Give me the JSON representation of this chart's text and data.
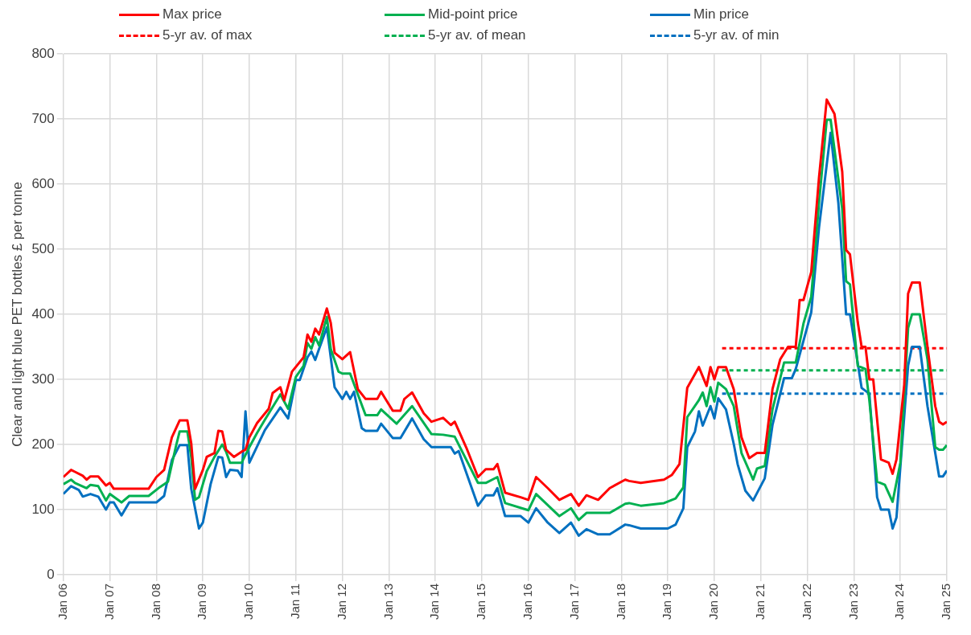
{
  "chart_data": {
    "type": "line",
    "ylabel": "Clear and light blue PET bottles £ per tonne",
    "legend": "top",
    "grid": true,
    "marker": "none",
    "line_style": "solid",
    "xlim": [
      "2006-01",
      "2025-01"
    ],
    "xticks": [
      {
        "value": "2006-01",
        "label": "Jan 06"
      },
      {
        "value": "2007-01",
        "label": "Jan 07"
      },
      {
        "value": "2008-01",
        "label": "Jan 08"
      },
      {
        "value": "2009-01",
        "label": "Jan 09"
      },
      {
        "value": "2010-01",
        "label": "Jan 10"
      },
      {
        "value": "2011-01",
        "label": "Jan 11"
      },
      {
        "value": "2012-01",
        "label": "Jan 12"
      },
      {
        "value": "2013-01",
        "label": "Jan 13"
      },
      {
        "value": "2014-01",
        "label": "Jan 14"
      },
      {
        "value": "2015-01",
        "label": "Jan 15"
      },
      {
        "value": "2016-01",
        "label": "Jan 16"
      },
      {
        "value": "2017-01",
        "label": "Jan 17"
      },
      {
        "value": "2018-01",
        "label": "Jan 18"
      },
      {
        "value": "2019-01",
        "label": "Jan 19"
      },
      {
        "value": "2020-01",
        "label": "Jan 20"
      },
      {
        "value": "2021-01",
        "label": "Jan 21"
      },
      {
        "value": "2022-01",
        "label": "Jan 22"
      },
      {
        "value": "2023-01",
        "label": "Jan 23"
      },
      {
        "value": "2024-01",
        "label": "Jan 24"
      },
      {
        "value": "2025-01",
        "label": "Jan 25"
      }
    ],
    "ylim": [
      0,
      800
    ],
    "yticks": [
      0,
      100,
      200,
      300,
      400,
      500,
      600,
      700,
      800
    ],
    "series": [
      {
        "name": "Max price",
        "color": "#ff0000",
        "x": [
          "2006-01",
          "2006-03",
          "2006-04",
          "2006-06",
          "2006-07",
          "2006-08",
          "2006-10",
          "2006-12",
          "2007-01",
          "2007-02",
          "2007-11",
          "2008-01",
          "2008-03",
          "2008-05",
          "2008-07",
          "2008-09",
          "2008-10",
          "2008-11",
          "2009-01",
          "2009-02",
          "2009-04",
          "2009-05",
          "2009-06",
          "2009-07",
          "2009-09",
          "2009-11",
          "2009-12",
          "2010-01",
          "2010-03",
          "2010-06",
          "2010-07",
          "2010-09",
          "2010-10",
          "2010-12",
          "2011-03",
          "2011-04",
          "2011-05",
          "2011-06",
          "2011-07",
          "2011-09",
          "2011-10",
          "2011-11",
          "2012-01",
          "2012-03",
          "2012-05",
          "2012-07",
          "2012-10",
          "2012-11",
          "2013-02",
          "2013-04",
          "2013-05",
          "2013-07",
          "2013-10",
          "2013-12",
          "2014-03",
          "2014-05",
          "2014-06",
          "2014-09",
          "2014-12",
          "2015-02",
          "2015-04",
          "2015-05",
          "2015-07",
          "2015-11",
          "2016-01",
          "2016-03",
          "2016-06",
          "2016-09",
          "2016-12",
          "2017-02",
          "2017-04",
          "2017-07",
          "2017-10",
          "2018-02",
          "2018-03",
          "2018-06",
          "2018-12",
          "2019-02",
          "2019-04",
          "2019-06",
          "2019-09",
          "2019-11",
          "2019-12",
          "2020-01",
          "2020-02",
          "2020-04",
          "2020-06",
          "2020-08",
          "2020-10",
          "2020-12",
          "2021-02",
          "2021-04",
          "2021-06",
          "2021-08",
          "2021-10",
          "2021-11",
          "2021-12",
          "2022-02",
          "2022-04",
          "2022-06",
          "2022-08",
          "2022-10",
          "2022-11",
          "2022-12",
          "2023-02",
          "2023-03",
          "2023-04",
          "2023-05",
          "2023-06",
          "2023-08",
          "2023-10",
          "2023-11",
          "2023-12",
          "2024-02",
          "2024-03",
          "2024-04",
          "2024-06",
          "2024-08",
          "2024-10",
          "2024-11",
          "2024-12",
          "2025-01"
        ],
        "values": [
          150,
          161,
          158,
          152,
          146,
          151,
          151,
          137,
          141,
          132,
          132,
          150,
          161,
          211,
          237,
          237,
          202,
          132,
          161,
          181,
          187,
          221,
          220,
          192,
          181,
          189,
          192,
          211,
          233,
          255,
          279,
          288,
          268,
          312,
          334,
          369,
          358,
          378,
          369,
          409,
          387,
          341,
          331,
          342,
          285,
          270,
          270,
          281,
          252,
          252,
          270,
          280,
          248,
          235,
          241,
          230,
          235,
          195,
          150,
          162,
          162,
          170,
          126,
          119,
          115,
          150,
          133,
          115,
          124,
          106,
          122,
          115,
          133,
          146,
          144,
          141,
          146,
          153,
          170,
          287,
          319,
          290,
          319,
          300,
          319,
          319,
          285,
          211,
          179,
          187,
          187,
          285,
          331,
          350,
          350,
          422,
          422,
          465,
          610,
          730,
          708,
          619,
          499,
          492,
          388,
          350,
          350,
          300,
          300,
          177,
          172,
          155,
          177,
          292,
          432,
          449,
          449,
          350,
          259,
          235,
          231,
          235
        ]
      },
      {
        "name": "Mid-point price",
        "color": "#00b050",
        "x": [
          "2006-01",
          "2006-03",
          "2006-04",
          "2006-07",
          "2006-08",
          "2006-10",
          "2006-12",
          "2007-01",
          "2007-04",
          "2007-06",
          "2007-11",
          "2008-02",
          "2008-04",
          "2008-06",
          "2008-07",
          "2008-09",
          "2008-10",
          "2008-11",
          "2008-12",
          "2009-02",
          "2009-04",
          "2009-06",
          "2009-07",
          "2009-08",
          "2009-11",
          "2010-01",
          "2010-03",
          "2010-05",
          "2010-09",
          "2010-11",
          "2011-01",
          "2011-03",
          "2011-04",
          "2011-05",
          "2011-06",
          "2011-07",
          "2011-09",
          "2011-10",
          "2011-12",
          "2012-01",
          "2012-03",
          "2012-07",
          "2012-10",
          "2012-11",
          "2013-03",
          "2013-07",
          "2013-12",
          "2014-03",
          "2014-06",
          "2014-12",
          "2015-02",
          "2015-05",
          "2015-07",
          "2016-01",
          "2016-03",
          "2016-09",
          "2016-12",
          "2017-02",
          "2017-04",
          "2017-10",
          "2018-02",
          "2018-03",
          "2018-06",
          "2018-12",
          "2019-03",
          "2019-05",
          "2019-06",
          "2019-09",
          "2019-10",
          "2019-11",
          "2019-12",
          "2020-01",
          "2020-02",
          "2020-04",
          "2020-06",
          "2020-08",
          "2020-11",
          "2020-12",
          "2021-02",
          "2021-04",
          "2021-07",
          "2021-10",
          "2021-12",
          "2022-02",
          "2022-04",
          "2022-06",
          "2022-07",
          "2022-10",
          "2022-11",
          "2022-12",
          "2023-02",
          "2023-04",
          "2023-05",
          "2023-07",
          "2023-09",
          "2023-11",
          "2024-01",
          "2024-03",
          "2024-04",
          "2024-06",
          "2024-08",
          "2024-10",
          "2024-11",
          "2024-12",
          "2025-01"
        ],
        "values": [
          139,
          146,
          141,
          133,
          138,
          136,
          114,
          124,
          111,
          121,
          121,
          135,
          143,
          196,
          220,
          220,
          181,
          115,
          119,
          159,
          181,
          200,
          189,
          172,
          172,
          196,
          218,
          238,
          277,
          255,
          304,
          321,
          356,
          347,
          365,
          352,
          396,
          347,
          312,
          309,
          309,
          245,
          245,
          254,
          232,
          259,
          216,
          215,
          212,
          141,
          141,
          150,
          110,
          99,
          124,
          90,
          102,
          84,
          95,
          95,
          109,
          110,
          106,
          110,
          117,
          134,
          242,
          268,
          280,
          259,
          288,
          266,
          295,
          285,
          259,
          187,
          146,
          163,
          167,
          254,
          326,
          326,
          386,
          427,
          571,
          699,
          699,
          562,
          451,
          446,
          321,
          316,
          268,
          143,
          138,
          112,
          172,
          379,
          400,
          400,
          331,
          196,
          192,
          192,
          199
        ]
      },
      {
        "name": "Min price",
        "color": "#0070c0",
        "x": [
          "2006-01",
          "2006-03",
          "2006-05",
          "2006-06",
          "2006-08",
          "2006-10",
          "2006-12",
          "2007-01",
          "2007-02",
          "2007-04",
          "2007-06",
          "2008-01",
          "2008-03",
          "2008-05",
          "2008-07",
          "2008-09",
          "2008-10",
          "2008-12",
          "2009-01",
          "2009-03",
          "2009-05",
          "2009-06",
          "2009-07",
          "2009-08",
          "2009-10",
          "2009-11",
          "2009-12",
          "2010-01",
          "2010-05",
          "2010-09",
          "2010-11",
          "2011-01",
          "2011-02",
          "2011-04",
          "2011-05",
          "2011-06",
          "2011-07",
          "2011-09",
          "2011-11",
          "2012-01",
          "2012-02",
          "2012-03",
          "2012-04",
          "2012-06",
          "2012-07",
          "2012-10",
          "2012-11",
          "2013-02",
          "2013-04",
          "2013-07",
          "2013-10",
          "2013-12",
          "2014-05",
          "2014-06",
          "2014-07",
          "2014-12",
          "2015-02",
          "2015-04",
          "2015-05",
          "2015-07",
          "2015-11",
          "2016-01",
          "2016-03",
          "2016-06",
          "2016-09",
          "2016-12",
          "2017-02",
          "2017-04",
          "2017-07",
          "2017-10",
          "2018-02",
          "2018-03",
          "2018-06",
          "2019-01",
          "2019-03",
          "2019-05",
          "2019-06",
          "2019-08",
          "2019-09",
          "2019-10",
          "2019-12",
          "2020-01",
          "2020-02",
          "2020-04",
          "2020-06",
          "2020-07",
          "2020-09",
          "2020-11",
          "2021-02",
          "2021-04",
          "2021-07",
          "2021-09",
          "2021-10",
          "2022-02",
          "2022-04",
          "2022-07",
          "2022-09",
          "2022-11",
          "2022-12",
          "2023-03",
          "2023-05",
          "2023-07",
          "2023-08",
          "2023-10",
          "2023-11",
          "2023-12",
          "2024-03",
          "2024-04",
          "2024-06",
          "2024-08",
          "2024-11",
          "2024-12",
          "2025-01"
        ],
        "values": [
          124,
          136,
          130,
          120,
          124,
          120,
          100,
          111,
          111,
          91,
          111,
          111,
          121,
          176,
          199,
          199,
          132,
          71,
          80,
          139,
          181,
          180,
          150,
          161,
          160,
          150,
          251,
          172,
          222,
          257,
          240,
          299,
          299,
          334,
          343,
          330,
          347,
          380,
          288,
          270,
          281,
          270,
          281,
          225,
          221,
          221,
          232,
          210,
          210,
          240,
          208,
          196,
          196,
          186,
          190,
          106,
          122,
          122,
          133,
          90,
          90,
          80,
          102,
          80,
          64,
          80,
          60,
          70,
          62,
          62,
          77,
          76,
          71,
          71,
          77,
          102,
          196,
          220,
          251,
          229,
          259,
          240,
          271,
          254,
          201,
          170,
          129,
          114,
          148,
          230,
          302,
          302,
          316,
          403,
          533,
          679,
          571,
          400,
          400,
          287,
          278,
          119,
          100,
          100,
          71,
          88,
          321,
          350,
          350,
          259,
          151,
          151,
          160
        ]
      },
      {
        "name": "5-yr av. of max",
        "color": "#ff0000",
        "line_style": "dashed",
        "x": [
          "2020-03",
          "2025-01"
        ],
        "values": [
          348,
          348
        ]
      },
      {
        "name": "5-yr av. of mean",
        "color": "#00b050",
        "line_style": "dashed",
        "x": [
          "2020-03",
          "2025-01"
        ],
        "values": [
          314,
          314
        ]
      },
      {
        "name": "5-yr av. of min",
        "color": "#0070c0",
        "line_style": "dashed",
        "x": [
          "2020-03",
          "2025-01"
        ],
        "values": [
          278,
          278
        ]
      }
    ]
  }
}
